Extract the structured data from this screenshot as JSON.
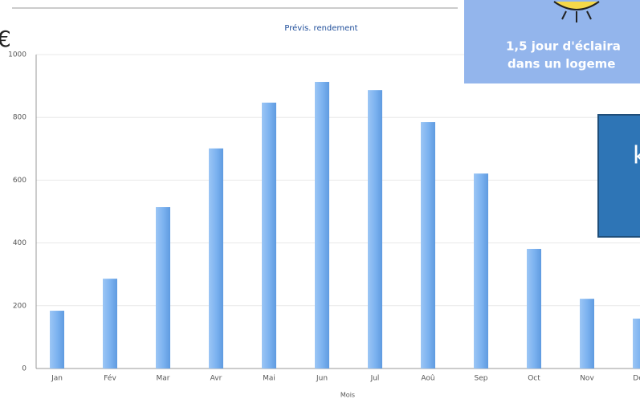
{
  "chart_data": {
    "type": "bar",
    "title": "Prévis. rendement",
    "x_label": "Mois",
    "categories": [
      "Jan",
      "Fév",
      "Mar",
      "Avr",
      "Mai",
      "Jun",
      "Jul",
      "Aoû",
      "Sep",
      "Oct",
      "Nov",
      "Déc"
    ],
    "values": [
      184,
      286,
      514,
      701,
      847,
      913,
      887,
      785,
      621,
      381,
      222,
      159
    ],
    "color": "#7db3f0",
    "ylim": [
      0,
      1000
    ],
    "yticks": [
      0,
      200,
      400,
      600,
      800,
      1000
    ],
    "grid": true
  },
  "currency_symbol": "€",
  "banner": {
    "line1": "1,5 jour d'éclaira",
    "line2": "dans un logeme"
  },
  "callout": {
    "text": "k"
  }
}
